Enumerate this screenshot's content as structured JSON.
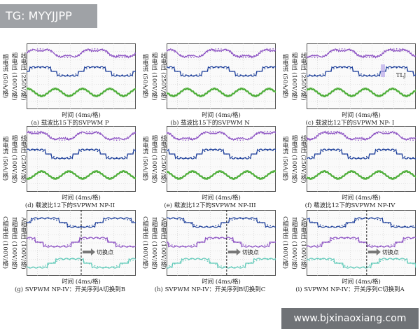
{
  "header_tag": "TG: MYYJJPP",
  "watermark": "www.bjxinaoxiang.com",
  "colors": {
    "grid_bg": "#fafafa",
    "grid": "#c9c9c9",
    "frame": "#555555",
    "line_voltage": "#8a4fc2",
    "phase_voltage": "#1d3f9a",
    "phase_current": "#4fae3a",
    "teal": "#5fc9b8",
    "marker": "#222222"
  },
  "chart_data": [
    {
      "type": "line",
      "title": "(a) 载波比15下的SVPWM P",
      "xlabel": "时间 (4ms/格)",
      "ylabels": [
        "线电压 (250V/格)",
        "相电压 (100V/格)",
        "相电流 (50A/格)"
      ],
      "series": [
        {
          "name": "线电压",
          "kind": "line_voltage",
          "periods": 2.0,
          "phase": 0.0
        },
        {
          "name": "相电压",
          "kind": "phase_voltage",
          "periods": 2.0,
          "phase": 0.0
        },
        {
          "name": "相电流",
          "kind": "phase_current",
          "periods": 4.0,
          "phase": 0.2
        }
      ]
    },
    {
      "type": "line",
      "title": "(b) 载波比15下的SVPWM N",
      "xlabel": "时间 (4ms/格)",
      "ylabels": [
        "线电压 (250V/格)",
        "相电压 (100V/格)",
        "相电流 (50A/格)"
      ],
      "series": [
        {
          "name": "线电压",
          "kind": "line_voltage",
          "periods": 2.0,
          "phase": 0.3
        },
        {
          "name": "相电压",
          "kind": "phase_voltage",
          "periods": 2.0,
          "phase": 0.3
        },
        {
          "name": "相电流",
          "kind": "phase_current",
          "periods": 4.0,
          "phase": 0.5
        }
      ]
    },
    {
      "type": "line",
      "title": "(c) 载波比12下的SVPWM NP- I",
      "xlabel": "时间 (4ms/格)",
      "ylabels": [
        "线电压 (250V/格)",
        "相电压 (100V/格)",
        "相电流 (50A/格)"
      ],
      "annotation": "TLJ",
      "series": [
        {
          "name": "线电压",
          "kind": "line_voltage",
          "periods": 2.0,
          "phase": 0.6
        },
        {
          "name": "相电压",
          "kind": "phase_voltage",
          "periods": 2.0,
          "phase": 0.6
        },
        {
          "name": "相电流",
          "kind": "phase_current",
          "periods": 4.0,
          "phase": 0.1
        }
      ]
    },
    {
      "type": "line",
      "title": "(d) 载波比12下的SVPWM NP-II",
      "xlabel": "时间 (4ms/格)",
      "ylabels": [
        "线电压 (250V/格)",
        "相电压 (100V/格)",
        "相电流 (50A/格)"
      ],
      "series": [
        {
          "name": "线电压",
          "kind": "line_voltage",
          "periods": 2.0,
          "phase": 0.1
        },
        {
          "name": "相电压",
          "kind": "phase_voltage",
          "periods": 2.0,
          "phase": 0.1
        },
        {
          "name": "相电流",
          "kind": "phase_current",
          "periods": 4.0,
          "phase": 0.7
        }
      ]
    },
    {
      "type": "line",
      "title": "(e) 载波比12下的SVPWM NP-III",
      "xlabel": "时间 (4ms/格)",
      "ylabels": [
        "线电压 (250V/格)",
        "相电压 (100V/格)",
        "相电流 (50A/格)"
      ],
      "series": [
        {
          "name": "线电压",
          "kind": "line_voltage",
          "periods": 2.0,
          "phase": 0.4
        },
        {
          "name": "相电压",
          "kind": "phase_voltage",
          "periods": 2.0,
          "phase": 0.4
        },
        {
          "name": "相电流",
          "kind": "phase_current",
          "periods": 4.0,
          "phase": 0.3
        }
      ]
    },
    {
      "type": "line",
      "title": "(f) 载波比12下的SVPWM NP-IV",
      "xlabel": "时间 (4ms/格)",
      "ylabels": [
        "线电压 (250V/格)",
        "相电压 (100V/格)",
        "相电流 (50A/格)"
      ],
      "series": [
        {
          "name": "线电压",
          "kind": "line_voltage",
          "periods": 2.0,
          "phase": 0.8
        },
        {
          "name": "相电压",
          "kind": "phase_voltage",
          "periods": 2.0,
          "phase": 0.8
        },
        {
          "name": "相电流",
          "kind": "phase_current",
          "periods": 4.0,
          "phase": 0.6
        }
      ]
    },
    {
      "type": "line",
      "title": "(g) SVPWM NP-IV：开关序列A切换到B",
      "xlabel": "时间 (4ms/格)",
      "ylabels": [
        "A相电压 (100V/格)",
        "B相电压 (100V/格)",
        "C相电压 (100V/格)"
      ],
      "annotation": "切换点",
      "switch_time": 0.5,
      "series": [
        {
          "name": "A相电压",
          "kind": "phase_voltage",
          "periods": 1.5,
          "phase": 0.0
        },
        {
          "name": "B相电压",
          "kind": "line_voltage",
          "periods": 1.5,
          "phase": 0.33
        },
        {
          "name": "C相电压",
          "kind": "teal",
          "periods": 1.5,
          "phase": 0.66
        }
      ]
    },
    {
      "type": "line",
      "title": "(h) SVPWM NP-IV：开关序列B切换到C",
      "xlabel": "时间 (4ms/格)",
      "ylabels": [
        "A相电压 (100V/格)",
        "B相电压 (100V/格)",
        "C相电压 (100V/格)"
      ],
      "annotation": "切换点",
      "switch_time": 0.55,
      "series": [
        {
          "name": "A相电压",
          "kind": "phase_voltage",
          "periods": 1.5,
          "phase": 0.2
        },
        {
          "name": "B相电压",
          "kind": "line_voltage",
          "periods": 1.5,
          "phase": 0.53
        },
        {
          "name": "C相电压",
          "kind": "teal",
          "periods": 1.5,
          "phase": 0.86
        }
      ]
    },
    {
      "type": "line",
      "title": "(i) SVPWM NP-IV：开关序列C切换到A",
      "xlabel": "时间 (4ms/格)",
      "ylabels": [
        "A相电压 (100V/格)",
        "B相电压 (100V/格)",
        "C相电压 (100V/格)"
      ],
      "annotation": "切换点",
      "switch_time": 0.55,
      "series": [
        {
          "name": "A相电压",
          "kind": "phase_voltage",
          "periods": 1.5,
          "phase": 0.4
        },
        {
          "name": "B相电压",
          "kind": "line_voltage",
          "periods": 1.5,
          "phase": 0.73
        },
        {
          "name": "C相电压",
          "kind": "teal",
          "periods": 1.5,
          "phase": 0.06
        }
      ]
    }
  ]
}
